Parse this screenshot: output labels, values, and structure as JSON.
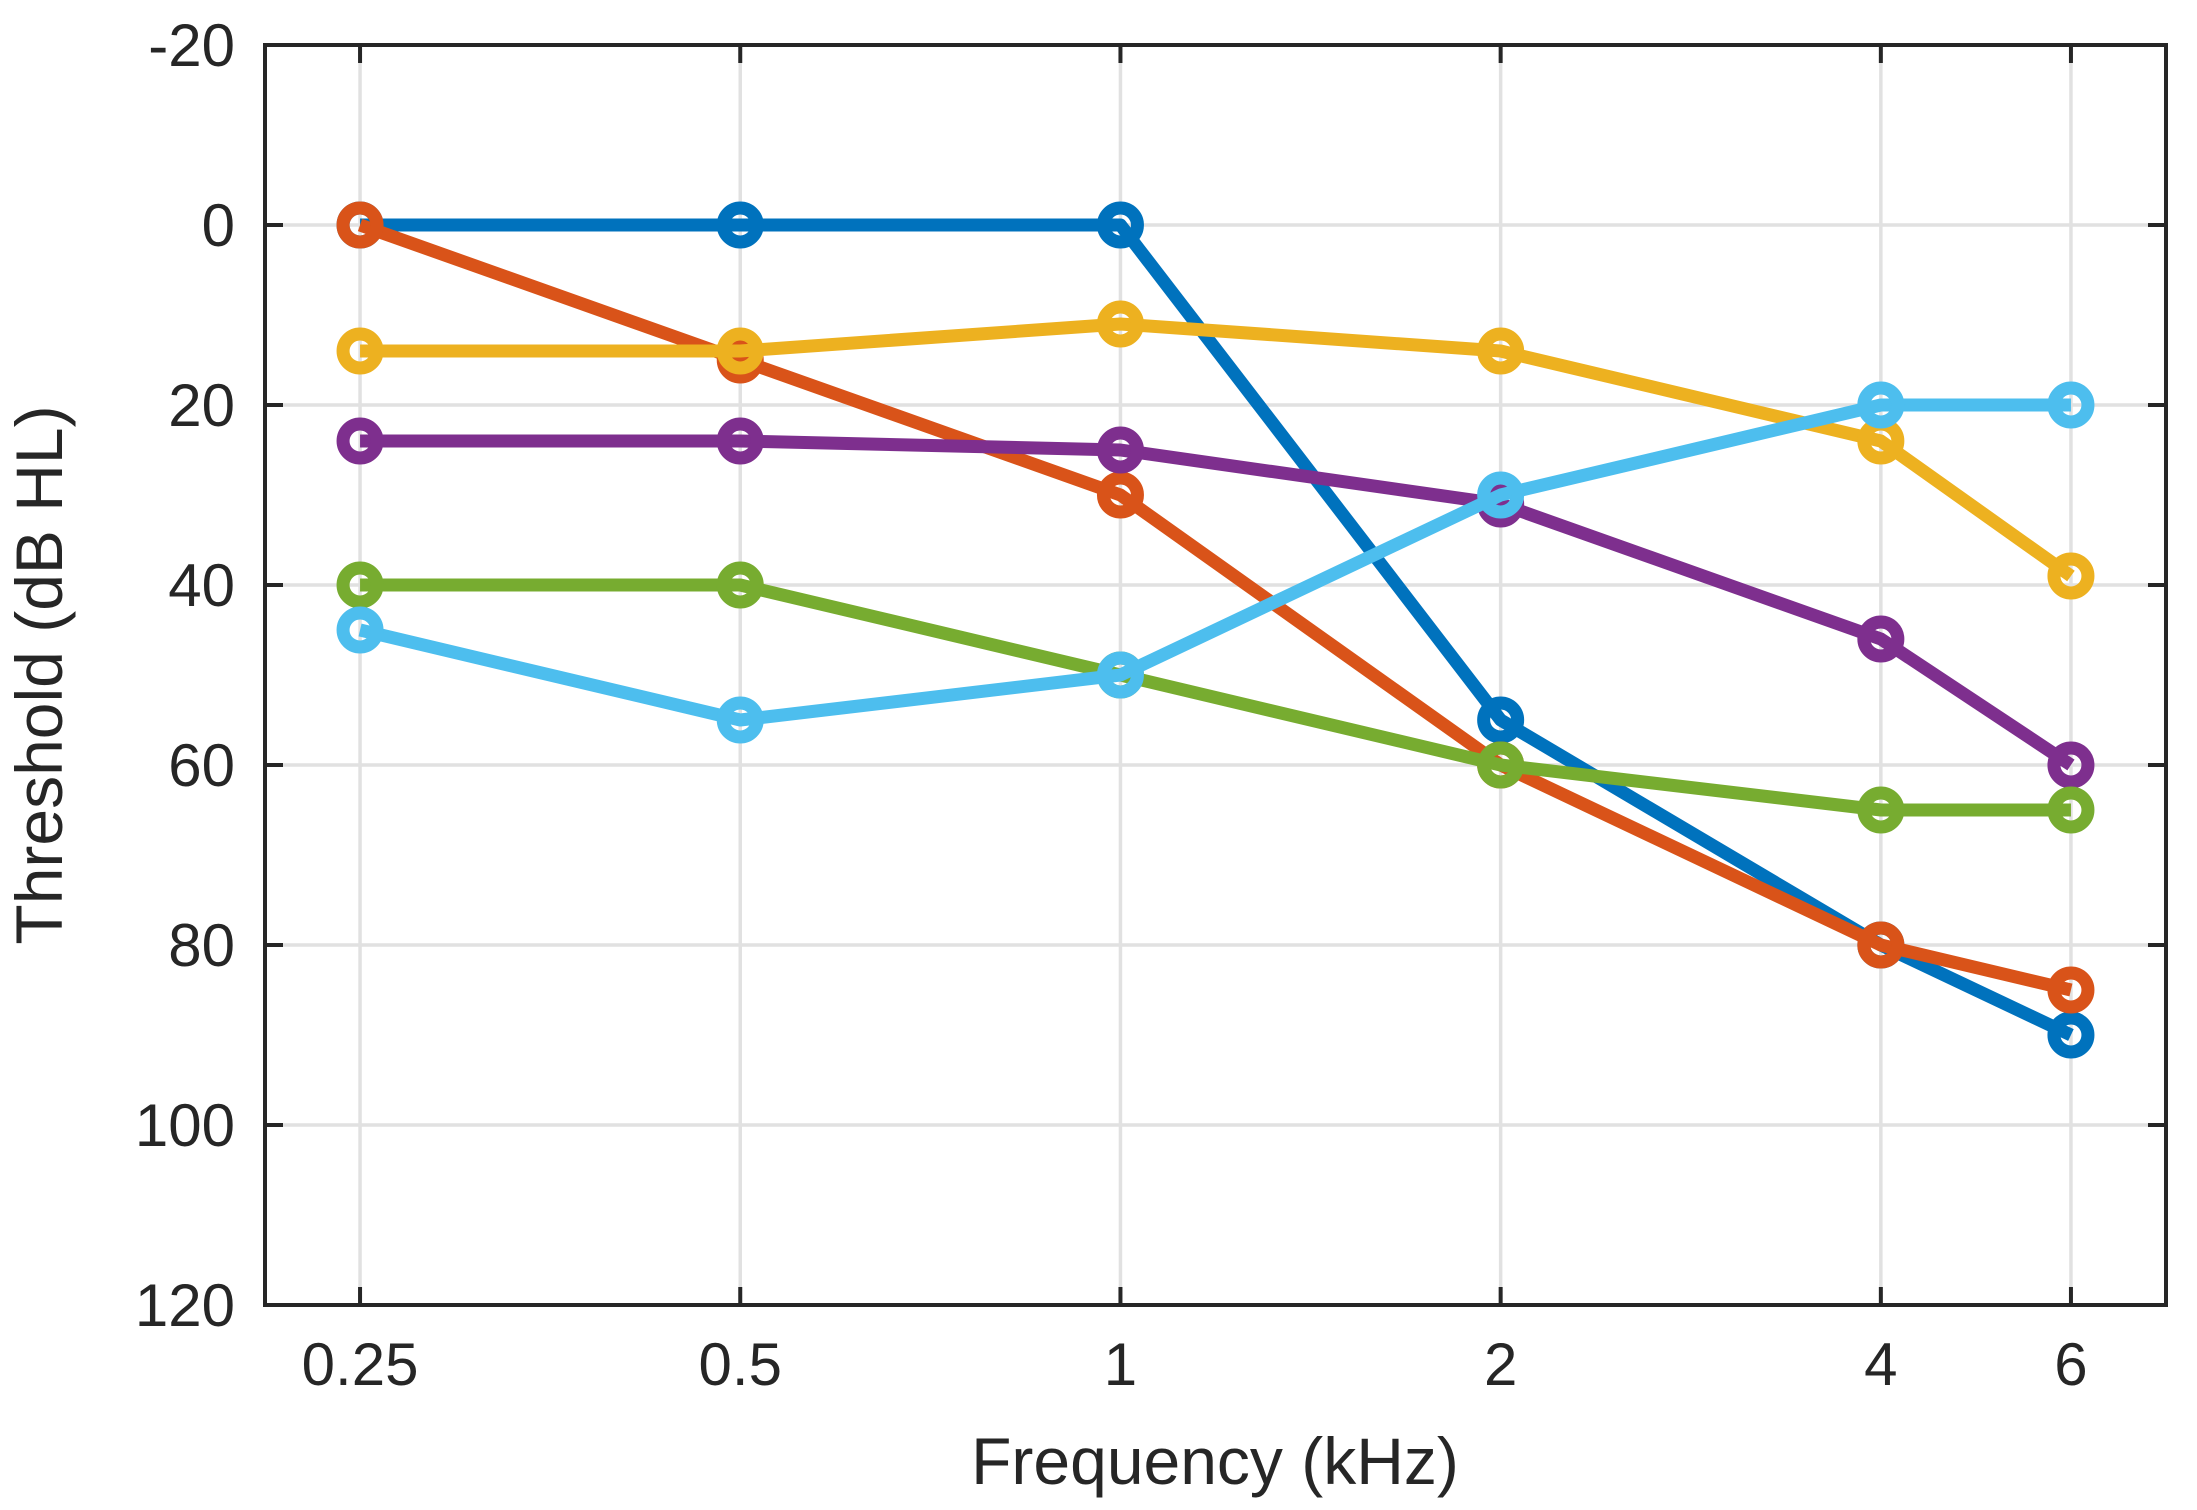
{
  "chart_data": {
    "type": "line",
    "xlabel": "Frequency (kHz)",
    "ylabel": "Threshold (dB HL)",
    "x_values_khz": [
      0.25,
      0.5,
      1,
      2,
      4,
      6
    ],
    "x_tick_labels": [
      "0.25",
      "0.5",
      "1",
      "2",
      "4",
      "6"
    ],
    "y_ticks": [
      -20,
      0,
      20,
      40,
      60,
      80,
      100,
      120
    ],
    "y_tick_labels": [
      "-20",
      "0",
      "20",
      "40",
      "60",
      "80",
      "100",
      "120"
    ],
    "ylim": [
      -20,
      120
    ],
    "y_axis_reversed": true,
    "x_scale": "log2-octaves-with-6kHz-at-half-octave",
    "x_positions_units": [
      0.25,
      1.25,
      2.25,
      3.25,
      4.25,
      4.75
    ],
    "x_axis_span_units": 5,
    "grid": true,
    "legend": "none",
    "title": "",
    "marker": "open-circle",
    "series": [
      {
        "name": "series-1-blue",
        "color": "#0072BD",
        "values": [
          0,
          0,
          0,
          55,
          80,
          90
        ]
      },
      {
        "name": "series-2-orange",
        "color": "#D95319",
        "values": [
          0,
          15,
          30,
          60,
          80,
          85
        ]
      },
      {
        "name": "series-3-yellow",
        "color": "#EDB120",
        "values": [
          14,
          14,
          11,
          14,
          24,
          39
        ]
      },
      {
        "name": "series-4-purple",
        "color": "#7E2F8E",
        "values": [
          24,
          24,
          25,
          31,
          46,
          60
        ]
      },
      {
        "name": "series-5-green",
        "color": "#77AC30",
        "values": [
          40,
          40,
          50,
          60,
          65,
          65
        ]
      },
      {
        "name": "series-6-cyan",
        "color": "#4DBEEE",
        "values": [
          45,
          55,
          50,
          30,
          20,
          20
        ]
      }
    ],
    "colors": {
      "axis": "#262626",
      "grid": "#E1E1E1",
      "background": "#FFFFFF"
    }
  }
}
